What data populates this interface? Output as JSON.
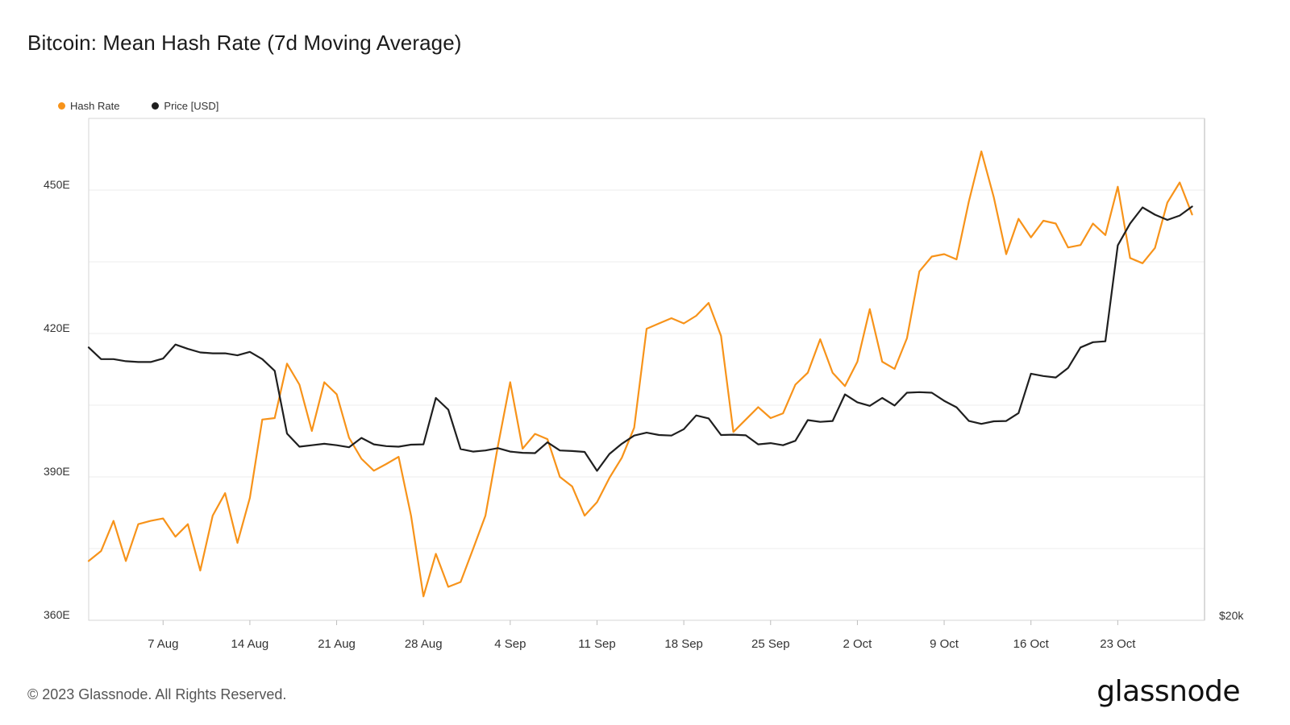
{
  "title": "Bitcoin: Mean Hash Rate (7d Moving Average)",
  "footer": "© 2023 Glassnode. All Rights Reserved.",
  "brand": "glassnode",
  "chart_data": {
    "type": "line",
    "title": "Bitcoin: Mean Hash Rate (7d Moving Average)",
    "left_axis": {
      "label": "Hash Rate",
      "unit": "E",
      "ylim": [
        360,
        465
      ],
      "ticks": [
        "360E",
        "390E",
        "420E",
        "450E"
      ],
      "tick_values": [
        360,
        390,
        420,
        450
      ]
    },
    "right_axis": {
      "label": "Price [USD]",
      "ticks": [
        "$20k"
      ]
    },
    "x_ticks": [
      "7 Aug",
      "14 Aug",
      "21 Aug",
      "28 Aug",
      "4 Sep",
      "11 Sep",
      "18 Sep",
      "25 Sep",
      "2 Oct",
      "9 Oct",
      "16 Oct",
      "23 Oct"
    ],
    "x_tick_days": [
      6,
      13,
      20,
      27,
      34,
      41,
      48,
      55,
      62,
      69,
      76,
      83
    ],
    "x_range_days": [
      0,
      90
    ],
    "price_ylim": [
      20000,
      37200
    ],
    "grid": true,
    "legend_position": "top-left",
    "series": [
      {
        "name": "Hash Rate",
        "color": "#f7931a",
        "x": [
          0,
          1,
          2,
          3,
          4,
          5,
          6,
          7,
          8,
          9,
          10,
          11,
          12,
          13,
          14,
          15,
          16,
          17,
          18,
          19,
          20,
          21,
          22,
          23,
          24,
          25,
          26,
          27,
          28,
          29,
          30,
          31,
          32,
          33,
          34,
          35,
          36,
          37,
          38,
          39,
          40,
          41,
          42,
          43,
          44,
          45,
          46,
          47,
          48,
          49,
          50,
          51,
          52,
          53,
          54,
          55,
          56,
          57,
          58,
          59,
          60,
          61,
          62,
          63,
          64,
          65,
          66,
          67,
          68,
          69,
          70,
          71,
          72,
          73,
          74,
          75,
          76,
          77,
          78,
          79,
          80,
          81,
          82,
          83,
          84,
          85,
          86,
          87,
          88,
          89
        ],
        "values": [
          372.4,
          374.5,
          380.8,
          372.4,
          380.1,
          380.8,
          381.3,
          377.5,
          380.1,
          370.4,
          381.9,
          386.6,
          376.2,
          385.6,
          402.0,
          402.3,
          413.7,
          409.3,
          399.6,
          409.8,
          407.3,
          398.2,
          393.8,
          391.3,
          392.7,
          394.2,
          381.9,
          365.0,
          373.9,
          367.0,
          368.0,
          374.9,
          381.9,
          396.4,
          409.8,
          395.9,
          399.0,
          397.9,
          390.0,
          388.0,
          381.9,
          384.7,
          389.8,
          394.0,
          400.3,
          421.0,
          422.1,
          423.2,
          422.1,
          423.7,
          426.4,
          419.5,
          399.4,
          402.0,
          404.6,
          402.3,
          403.3,
          409.3,
          411.8,
          418.8,
          411.8,
          409.0,
          414.1,
          425.1,
          414.1,
          412.6,
          419.0,
          433.0,
          436.1,
          436.6,
          435.5,
          447.7,
          458.1,
          448.5,
          436.6,
          444.0,
          440.1,
          443.6,
          443.0,
          438.0,
          438.5,
          443.0,
          440.6,
          450.7,
          435.8,
          434.7,
          437.9,
          447.4,
          451.6,
          444.9
        ]
      },
      {
        "name": "Price [USD]",
        "color": "#1f1f1f",
        "x": [
          0,
          1,
          2,
          3,
          4,
          5,
          6,
          7,
          8,
          9,
          10,
          11,
          12,
          13,
          14,
          15,
          16,
          17,
          18,
          19,
          20,
          21,
          22,
          23,
          24,
          25,
          26,
          27,
          28,
          29,
          30,
          31,
          32,
          33,
          34,
          35,
          36,
          37,
          38,
          39,
          40,
          41,
          42,
          43,
          44,
          45,
          46,
          47,
          48,
          49,
          50,
          51,
          52,
          53,
          54,
          55,
          56,
          57,
          58,
          59,
          60,
          61,
          62,
          63,
          64,
          65,
          66,
          67,
          68,
          69,
          70,
          71,
          72,
          73,
          74,
          75,
          76,
          77,
          78,
          79,
          80,
          81,
          82,
          83,
          84,
          85,
          86,
          87,
          88,
          89
        ],
        "values": [
          29350,
          28950,
          28950,
          28880,
          28850,
          28850,
          28970,
          29450,
          29300,
          29180,
          29150,
          29150,
          29080,
          29200,
          28950,
          28550,
          26400,
          25950,
          26000,
          26050,
          26000,
          25930,
          26250,
          26030,
          25970,
          25950,
          26020,
          26030,
          27620,
          27220,
          25870,
          25780,
          25820,
          25900,
          25780,
          25740,
          25730,
          26100,
          25820,
          25800,
          25770,
          25120,
          25700,
          26050,
          26330,
          26430,
          26350,
          26330,
          26550,
          27020,
          26920,
          26350,
          26360,
          26340,
          26030,
          26070,
          26000,
          26150,
          26860,
          26800,
          26830,
          27740,
          27470,
          27350,
          27620,
          27360,
          27800,
          27820,
          27800,
          27520,
          27300,
          26830,
          26730,
          26820,
          26830,
          27100,
          28450,
          28370,
          28320,
          28650,
          29350,
          29530,
          29560,
          32850,
          33600,
          34150,
          33900,
          33720,
          33870,
          34180
        ]
      }
    ]
  }
}
